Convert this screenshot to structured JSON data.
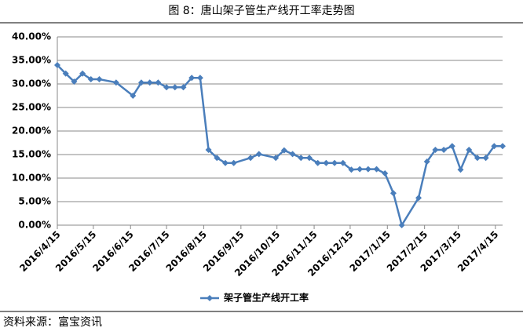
{
  "chart_data": {
    "type": "line",
    "title": "图 8：唐山架子管生产线开工率走势图",
    "source": "资料来源：富宝资讯",
    "x": [
      "2016/4/15",
      "2016/4/22",
      "2016/4/29",
      "2016/5/6",
      "2016/5/13",
      "2016/5/20",
      "2016/6/3",
      "2016/6/17",
      "2016/6/24",
      "2016/7/1",
      "2016/7/8",
      "2016/7/15",
      "2016/7/22",
      "2016/7/29",
      "2016/8/5",
      "2016/8/12",
      "2016/8/19",
      "2016/8/26",
      "2016/9/2",
      "2016/9/9",
      "2016/9/23",
      "2016/9/30",
      "2016/10/14",
      "2016/10/21",
      "2016/10/28",
      "2016/11/4",
      "2016/11/11",
      "2016/11/18",
      "2016/11/25",
      "2016/12/2",
      "2016/12/9",
      "2016/12/16",
      "2016/12/23",
      "2016/12/30",
      "2017/1/6",
      "2017/1/13",
      "2017/1/20",
      "2017/1/27",
      "2017/2/10",
      "2017/2/17",
      "2017/2/24",
      "2017/3/3",
      "2017/3/10",
      "2017/3/17",
      "2017/3/24",
      "2017/3/31",
      "2017/4/7",
      "2017/4/14",
      "2017/4/21"
    ],
    "series": [
      {
        "name": "架子管生产线开工率",
        "color": "#4a7ebb",
        "values": [
          34.0,
          32.2,
          30.5,
          32.2,
          31.0,
          31.0,
          30.3,
          27.5,
          30.3,
          30.3,
          30.3,
          29.3,
          29.3,
          29.3,
          31.3,
          31.3,
          16.0,
          14.3,
          13.2,
          13.2,
          14.3,
          15.1,
          14.3,
          15.9,
          15.1,
          14.3,
          14.3,
          13.2,
          13.2,
          13.2,
          13.2,
          11.8,
          11.9,
          11.9,
          11.9,
          11.0,
          6.8,
          0,
          5.8,
          13.5,
          16.0,
          16.0,
          16.8,
          11.8,
          16.0,
          14.3,
          14.3,
          16.8,
          16.8
        ]
      }
    ],
    "xlim": [
      "2016/4/15",
      "2017/4/21"
    ],
    "xticks": [
      "2016/4/15",
      "2016/5/15",
      "2016/6/15",
      "2016/7/15",
      "2016/8/15",
      "2016/9/15",
      "2016/10/15",
      "2016/11/15",
      "2016/12/15",
      "2017/1/15",
      "2017/2/15",
      "2017/3/15",
      "2017/4/15"
    ],
    "ylim": [
      0,
      40
    ],
    "yticks": [
      {
        "value": 0,
        "label": "0.00%"
      },
      {
        "value": 5,
        "label": "5.00%"
      },
      {
        "value": 10,
        "label": "10.00%"
      },
      {
        "value": 15,
        "label": "15.00%"
      },
      {
        "value": 20,
        "label": "20.00%"
      },
      {
        "value": 25,
        "label": "25.00%"
      },
      {
        "value": 30,
        "label": "30.00%"
      },
      {
        "value": 35,
        "label": "35.00%"
      },
      {
        "value": 40,
        "label": "40.00%"
      }
    ],
    "grid": true,
    "legend": "bottom"
  }
}
